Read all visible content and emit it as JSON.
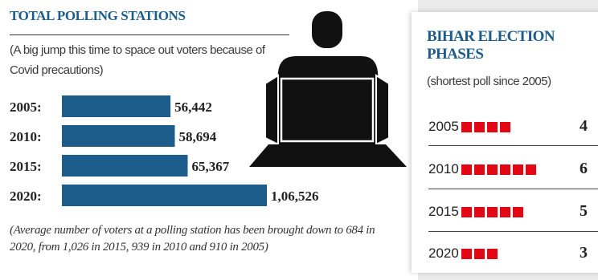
{
  "polling": {
    "title": "TOTAL POLLING STATIONS",
    "subtitle": "(A big jump this time to space out voters because of Covid precautions)",
    "footnote": "(Average number of voters at a polling station has been brought down to 684 in 2020, from 1,026 in 2015, 939  in 2010 and 910 in 2005)"
  },
  "phases": {
    "title": "BIHAR ELECTION PHASES",
    "subtitle": "(shortest poll since 2005)",
    "rows": [
      {
        "year": "2005",
        "count": "4",
        "phases": 4
      },
      {
        "year": "2010",
        "count": "6",
        "phases": 6
      },
      {
        "year": "2015",
        "count": "5",
        "phases": 5
      },
      {
        "year": "2020",
        "count": "3",
        "phases": 3
      }
    ],
    "square_color": "#e30613"
  },
  "colors": {
    "bar": "#1c5c8b",
    "title": "#1c5c8b",
    "figure": "#111111"
  },
  "chart_data": {
    "type": "bar",
    "orientation": "horizontal",
    "title": "TOTAL POLLING STATIONS",
    "categories": [
      "2005:",
      "2010:",
      "2015:",
      "2020:"
    ],
    "values": [
      56442,
      58694,
      65367,
      106526
    ],
    "value_labels": [
      "56,442",
      "58,694",
      "65,367",
      "1,06,526"
    ],
    "xlim": [
      0,
      106526
    ],
    "grid": false,
    "legend": "none"
  }
}
